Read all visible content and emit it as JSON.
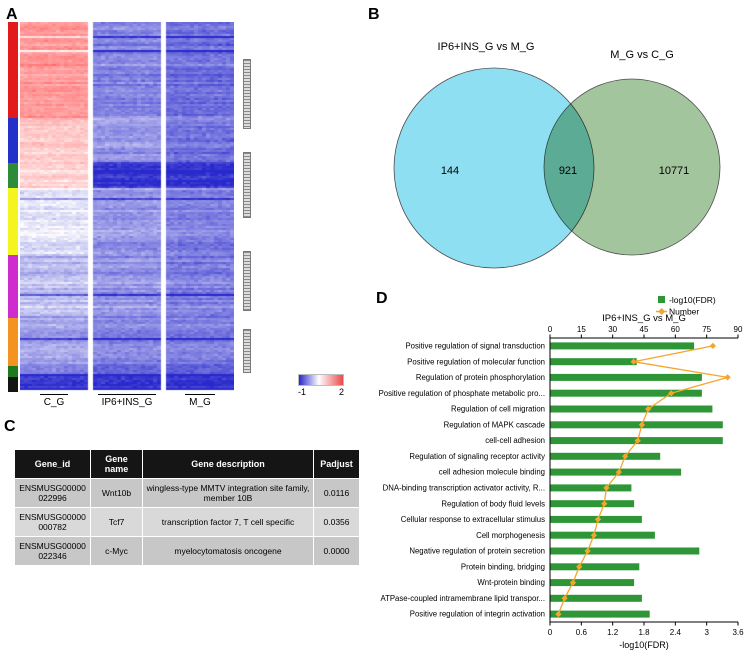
{
  "panels": {
    "a": "A",
    "b": "B",
    "c": "C",
    "d": "D"
  },
  "table": {
    "headers": [
      "Gene_id",
      "Gene name",
      "Gene description",
      "Padjust"
    ],
    "rows": [
      {
        "gene_id": "ENSMUSG00000022996",
        "gene_name": "Wnt10b",
        "description": "wingless-type MMTV integration site family, member 10B",
        "padjust": "0.0116"
      },
      {
        "gene_id": "ENSMUSG00000000782",
        "gene_name": "Tcf7",
        "description": "transcription factor 7, T cell specific",
        "padjust": "0.0356"
      },
      {
        "gene_id": "ENSMUSG00000022346",
        "gene_name": "c-Myc",
        "description": "myelocytomatosis oncogene",
        "padjust": "0.0000"
      }
    ]
  },
  "chart_data": [
    {
      "id": "expression-heatmap",
      "type": "heatmap",
      "columns": [
        "C_G",
        "IP6+INS_G",
        "M_G"
      ],
      "colorbar": {
        "min_label": "-1",
        "max_label": "2",
        "min_color": "#2828cd",
        "mid_color": "#ffffff",
        "max_color": "#ea4b4b"
      },
      "row_clusters": [
        {
          "color": "#e31a1c",
          "fraction": 0.26,
          "group_means": [
            1.35,
            -0.35,
            -0.5
          ]
        },
        {
          "color": "#2431c9",
          "fraction": 0.12,
          "group_means": [
            0.95,
            -0.2,
            -0.45
          ]
        },
        {
          "color": "#2e8b3a",
          "fraction": 0.07,
          "group_means": [
            0.85,
            -0.95,
            -0.95
          ]
        },
        {
          "color": "#f4f41e",
          "fraction": 0.18,
          "group_means": [
            0.35,
            -0.2,
            -0.35
          ]
        },
        {
          "color": "#cf2ccf",
          "fraction": 0.17,
          "group_means": [
            0.05,
            -0.25,
            -0.4
          ]
        },
        {
          "color": "#f59322",
          "fraction": 0.13,
          "group_means": [
            -0.1,
            -0.3,
            -0.35
          ]
        },
        {
          "color": "#1f7a1f",
          "fraction": 0.03,
          "group_means": [
            -0.35,
            -0.55,
            -0.6
          ]
        },
        {
          "color": "#141414",
          "fraction": 0.04,
          "group_means": [
            -0.9,
            -0.95,
            -0.95
          ]
        }
      ],
      "cluster_markers": [
        [
          0.1,
          0.29
        ],
        [
          0.35,
          0.53
        ],
        [
          0.62,
          0.78
        ],
        [
          0.83,
          0.95
        ]
      ]
    },
    {
      "id": "deg-venn",
      "type": "venn",
      "sets": [
        {
          "label": "IP6+INS_G vs M_G",
          "unique_count": "144",
          "color": "#7fdbf0"
        },
        {
          "label": "M_G vs C_G",
          "unique_count": "10771",
          "color": "#96bd8f"
        }
      ],
      "overlap_count": "921"
    },
    {
      "id": "go-enrichment",
      "type": "bar",
      "title": "IP6+INS_G vs M_G",
      "xlabel": "-log10(FDR)",
      "categories": [
        "Positive regulation of signal transduction",
        "Positive regulation of molecular function",
        "Regulation of protein phosphorylation",
        "Positive regulation of phosphate metabolic pro...",
        "Regulation of cell migration",
        "Regulation of MAPK cascade",
        "cell-cell adhesion",
        "Regulation of signaling receptor activity",
        "cell adhesion molecule binding",
        "DNA-binding transcription activator activity, R...",
        "Regulation of body fluid levels",
        "Cellular response to extracellular stimulus",
        "Cell morphogenesis",
        "Negative regulation of protein secretion",
        "Protein binding, bridging",
        "Wnt-protein binding",
        "ATPase-coupled intramembrane lipid transpor...",
        "Positive regulation of integrin activation"
      ],
      "series": [
        {
          "name": "-log10(FDR)",
          "color": "#2f9637",
          "values": [
            2.75,
            1.65,
            2.9,
            2.9,
            3.1,
            3.3,
            3.3,
            2.1,
            2.5,
            1.55,
            1.6,
            1.75,
            2.0,
            2.85,
            1.7,
            1.6,
            1.75,
            1.9
          ]
        },
        {
          "name": "Number",
          "color": "#f5a62a",
          "values": [
            78,
            40,
            85,
            58,
            47,
            44,
            42,
            36,
            33,
            27,
            26,
            23,
            21,
            18,
            14,
            11,
            7,
            4
          ]
        }
      ],
      "fdr_axis": {
        "ticks": [
          0,
          0.6,
          1.2,
          1.8,
          2.4,
          3,
          3.6
        ],
        "max": 3.6
      },
      "number_axis": {
        "ticks": [
          0,
          15,
          30,
          45,
          60,
          75,
          90
        ],
        "max": 90
      }
    }
  ]
}
